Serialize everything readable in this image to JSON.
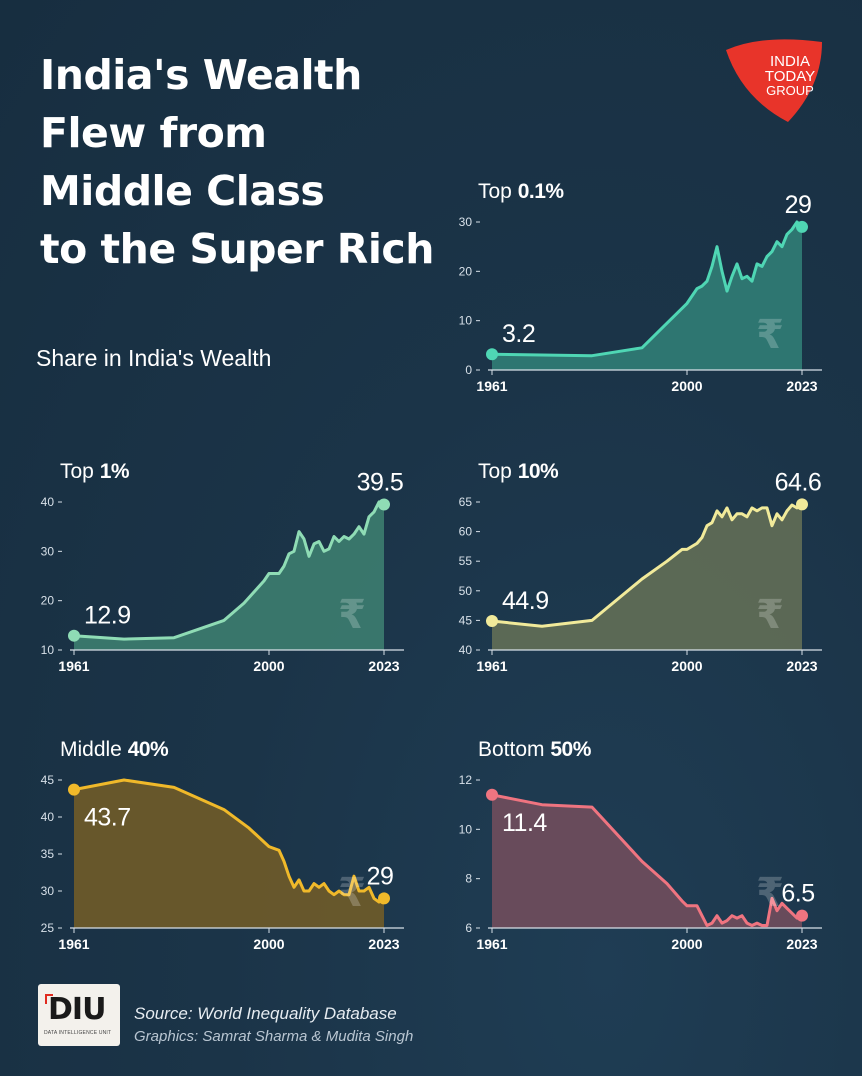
{
  "header": {
    "title_lines": [
      "India's Wealth",
      "Flew from",
      "Middle Class",
      "to the Super Rich"
    ],
    "subtitle": "Share in India's Wealth"
  },
  "brand": {
    "logo_lines": [
      "INDIA",
      "TODAY",
      "GROUP"
    ],
    "logo_color": "#e8342a"
  },
  "footer": {
    "diu_logo_text": "DIU",
    "diu_logo_subtext": "DATA INTELLIGENCE UNIT",
    "source": "Source: World Inequality Database",
    "credits": "Graphics: Samrat Sharma & Mudita Singh"
  },
  "chart_data": [
    {
      "type": "area",
      "title_prefix": "Top ",
      "title_value": "0.1%",
      "color": "#4fd6b4",
      "fill": "#2f7a74",
      "currency_icon": "rupee-icon",
      "xlim": [
        1961,
        2023
      ],
      "ylim": [
        0,
        30
      ],
      "yticks": [
        0,
        10,
        20,
        30
      ],
      "xticks": [
        1961,
        2000,
        2023
      ],
      "start_label": "3.2",
      "end_label": "29",
      "points": [
        [
          1961,
          3.2
        ],
        [
          1981,
          2.9
        ],
        [
          1991,
          4.5
        ],
        [
          1995,
          8.5
        ],
        [
          1998,
          11.5
        ],
        [
          2000,
          13.5
        ],
        [
          2002,
          16.5
        ],
        [
          2003,
          17
        ],
        [
          2004,
          18
        ],
        [
          2005,
          21
        ],
        [
          2006,
          25
        ],
        [
          2007,
          20
        ],
        [
          2008,
          16
        ],
        [
          2009,
          19
        ],
        [
          2010,
          21.5
        ],
        [
          2011,
          18.5
        ],
        [
          2012,
          19
        ],
        [
          2013,
          18
        ],
        [
          2014,
          21.5
        ],
        [
          2015,
          21
        ],
        [
          2016,
          23
        ],
        [
          2017,
          24
        ],
        [
          2018,
          26
        ],
        [
          2019,
          25
        ],
        [
          2020,
          27.5
        ],
        [
          2021,
          28.5
        ],
        [
          2022,
          30
        ],
        [
          2023,
          29
        ]
      ]
    },
    {
      "type": "area",
      "title_prefix": "Top ",
      "title_value": "1%",
      "color": "#8fdcb5",
      "fill": "#3b7a6e",
      "currency_icon": "rupee-icon",
      "xlim": [
        1961,
        2023
      ],
      "ylim": [
        10,
        40
      ],
      "yticks": [
        10,
        20,
        30,
        40
      ],
      "xticks": [
        1961,
        2000,
        2023
      ],
      "start_label": "12.9",
      "end_label": "39.5",
      "points": [
        [
          1961,
          12.9
        ],
        [
          1971,
          12.2
        ],
        [
          1981,
          12.5
        ],
        [
          1991,
          16
        ],
        [
          1995,
          19.5
        ],
        [
          1999,
          24
        ],
        [
          2000,
          25.5
        ],
        [
          2002,
          25.5
        ],
        [
          2003,
          27
        ],
        [
          2004,
          29.5
        ],
        [
          2005,
          30
        ],
        [
          2006,
          34
        ],
        [
          2007,
          32.5
        ],
        [
          2008,
          29
        ],
        [
          2009,
          31.5
        ],
        [
          2010,
          32
        ],
        [
          2011,
          30
        ],
        [
          2012,
          30.5
        ],
        [
          2013,
          33
        ],
        [
          2014,
          32
        ],
        [
          2015,
          33
        ],
        [
          2016,
          32.5
        ],
        [
          2017,
          33.5
        ],
        [
          2018,
          35
        ],
        [
          2019,
          33.5
        ],
        [
          2020,
          37
        ],
        [
          2021,
          38
        ],
        [
          2022,
          40
        ],
        [
          2023,
          39.5
        ]
      ]
    },
    {
      "type": "area",
      "title_prefix": "Top ",
      "title_value": "10%",
      "color": "#f1ea9a",
      "fill": "#5f6b55",
      "currency_icon": "rupee-icon",
      "xlim": [
        1961,
        2023
      ],
      "ylim": [
        40,
        65
      ],
      "yticks": [
        40,
        45,
        50,
        55,
        60,
        65
      ],
      "xticks": [
        1961,
        2000,
        2023
      ],
      "start_label": "44.9",
      "end_label": "64.6",
      "points": [
        [
          1961,
          44.9
        ],
        [
          1971,
          44
        ],
        [
          1981,
          45
        ],
        [
          1991,
          52
        ],
        [
          1996,
          55
        ],
        [
          1999,
          57
        ],
        [
          2000,
          57
        ],
        [
          2002,
          58
        ],
        [
          2003,
          59
        ],
        [
          2004,
          61
        ],
        [
          2005,
          61.5
        ],
        [
          2006,
          63.5
        ],
        [
          2007,
          62.5
        ],
        [
          2008,
          64
        ],
        [
          2009,
          62
        ],
        [
          2010,
          63
        ],
        [
          2011,
          63
        ],
        [
          2012,
          62.5
        ],
        [
          2013,
          64
        ],
        [
          2014,
          63.5
        ],
        [
          2015,
          64
        ],
        [
          2016,
          64
        ],
        [
          2017,
          61
        ],
        [
          2018,
          63
        ],
        [
          2019,
          62
        ],
        [
          2020,
          63.5
        ],
        [
          2021,
          64.5
        ],
        [
          2022,
          64
        ],
        [
          2023,
          64.6
        ]
      ]
    },
    {
      "type": "area",
      "title_prefix": "Middle ",
      "title_value": "40%",
      "color": "#f0b92a",
      "fill": "#6b5a2a",
      "currency_icon": "rupee-icon",
      "xlim": [
        1961,
        2023
      ],
      "ylim": [
        25,
        45
      ],
      "yticks": [
        25,
        30,
        35,
        40,
        45
      ],
      "xticks": [
        1961,
        2000,
        2023
      ],
      "start_label": "43.7",
      "end_label": "29",
      "points": [
        [
          1961,
          43.7
        ],
        [
          1971,
          45
        ],
        [
          1981,
          44
        ],
        [
          1991,
          41
        ],
        [
          1996,
          38.5
        ],
        [
          2000,
          36
        ],
        [
          2002,
          35.5
        ],
        [
          2003,
          34
        ],
        [
          2004,
          32
        ],
        [
          2005,
          30.5
        ],
        [
          2006,
          31.5
        ],
        [
          2007,
          30
        ],
        [
          2008,
          30
        ],
        [
          2009,
          31
        ],
        [
          2010,
          30.5
        ],
        [
          2011,
          31
        ],
        [
          2012,
          30
        ],
        [
          2013,
          29.5
        ],
        [
          2014,
          30
        ],
        [
          2015,
          29.5
        ],
        [
          2016,
          29.5
        ],
        [
          2017,
          32
        ],
        [
          2018,
          30
        ],
        [
          2019,
          30
        ],
        [
          2020,
          30.5
        ],
        [
          2021,
          29
        ],
        [
          2022,
          28.5
        ],
        [
          2023,
          29
        ]
      ]
    },
    {
      "type": "area",
      "title_prefix": "Bottom ",
      "title_value": "50%",
      "color": "#ef7480",
      "fill": "#6d4c5c",
      "currency_icon": "rupee-icon",
      "xlim": [
        1961,
        2023
      ],
      "ylim": [
        6,
        12
      ],
      "yticks": [
        6,
        8,
        10,
        12
      ],
      "xticks": [
        1961,
        2000,
        2023
      ],
      "start_label": "11.4",
      "end_label": "6.5",
      "points": [
        [
          1961,
          11.4
        ],
        [
          1971,
          11
        ],
        [
          1981,
          10.9
        ],
        [
          1991,
          8.7
        ],
        [
          1996,
          7.8
        ],
        [
          1999,
          7.1
        ],
        [
          2000,
          6.9
        ],
        [
          2002,
          6.9
        ],
        [
          2003,
          6.5
        ],
        [
          2004,
          6.1
        ],
        [
          2005,
          6.2
        ],
        [
          2006,
          6.5
        ],
        [
          2007,
          6.2
        ],
        [
          2008,
          6.3
        ],
        [
          2009,
          6.5
        ],
        [
          2010,
          6.4
        ],
        [
          2011,
          6.5
        ],
        [
          2012,
          6.2
        ],
        [
          2013,
          6.1
        ],
        [
          2014,
          6.2
        ],
        [
          2015,
          6.1
        ],
        [
          2016,
          6.1
        ],
        [
          2017,
          7.2
        ],
        [
          2018,
          6.7
        ],
        [
          2019,
          7
        ],
        [
          2020,
          6.8
        ],
        [
          2021,
          6.6
        ],
        [
          2022,
          6.4
        ],
        [
          2023,
          6.5
        ]
      ]
    }
  ]
}
